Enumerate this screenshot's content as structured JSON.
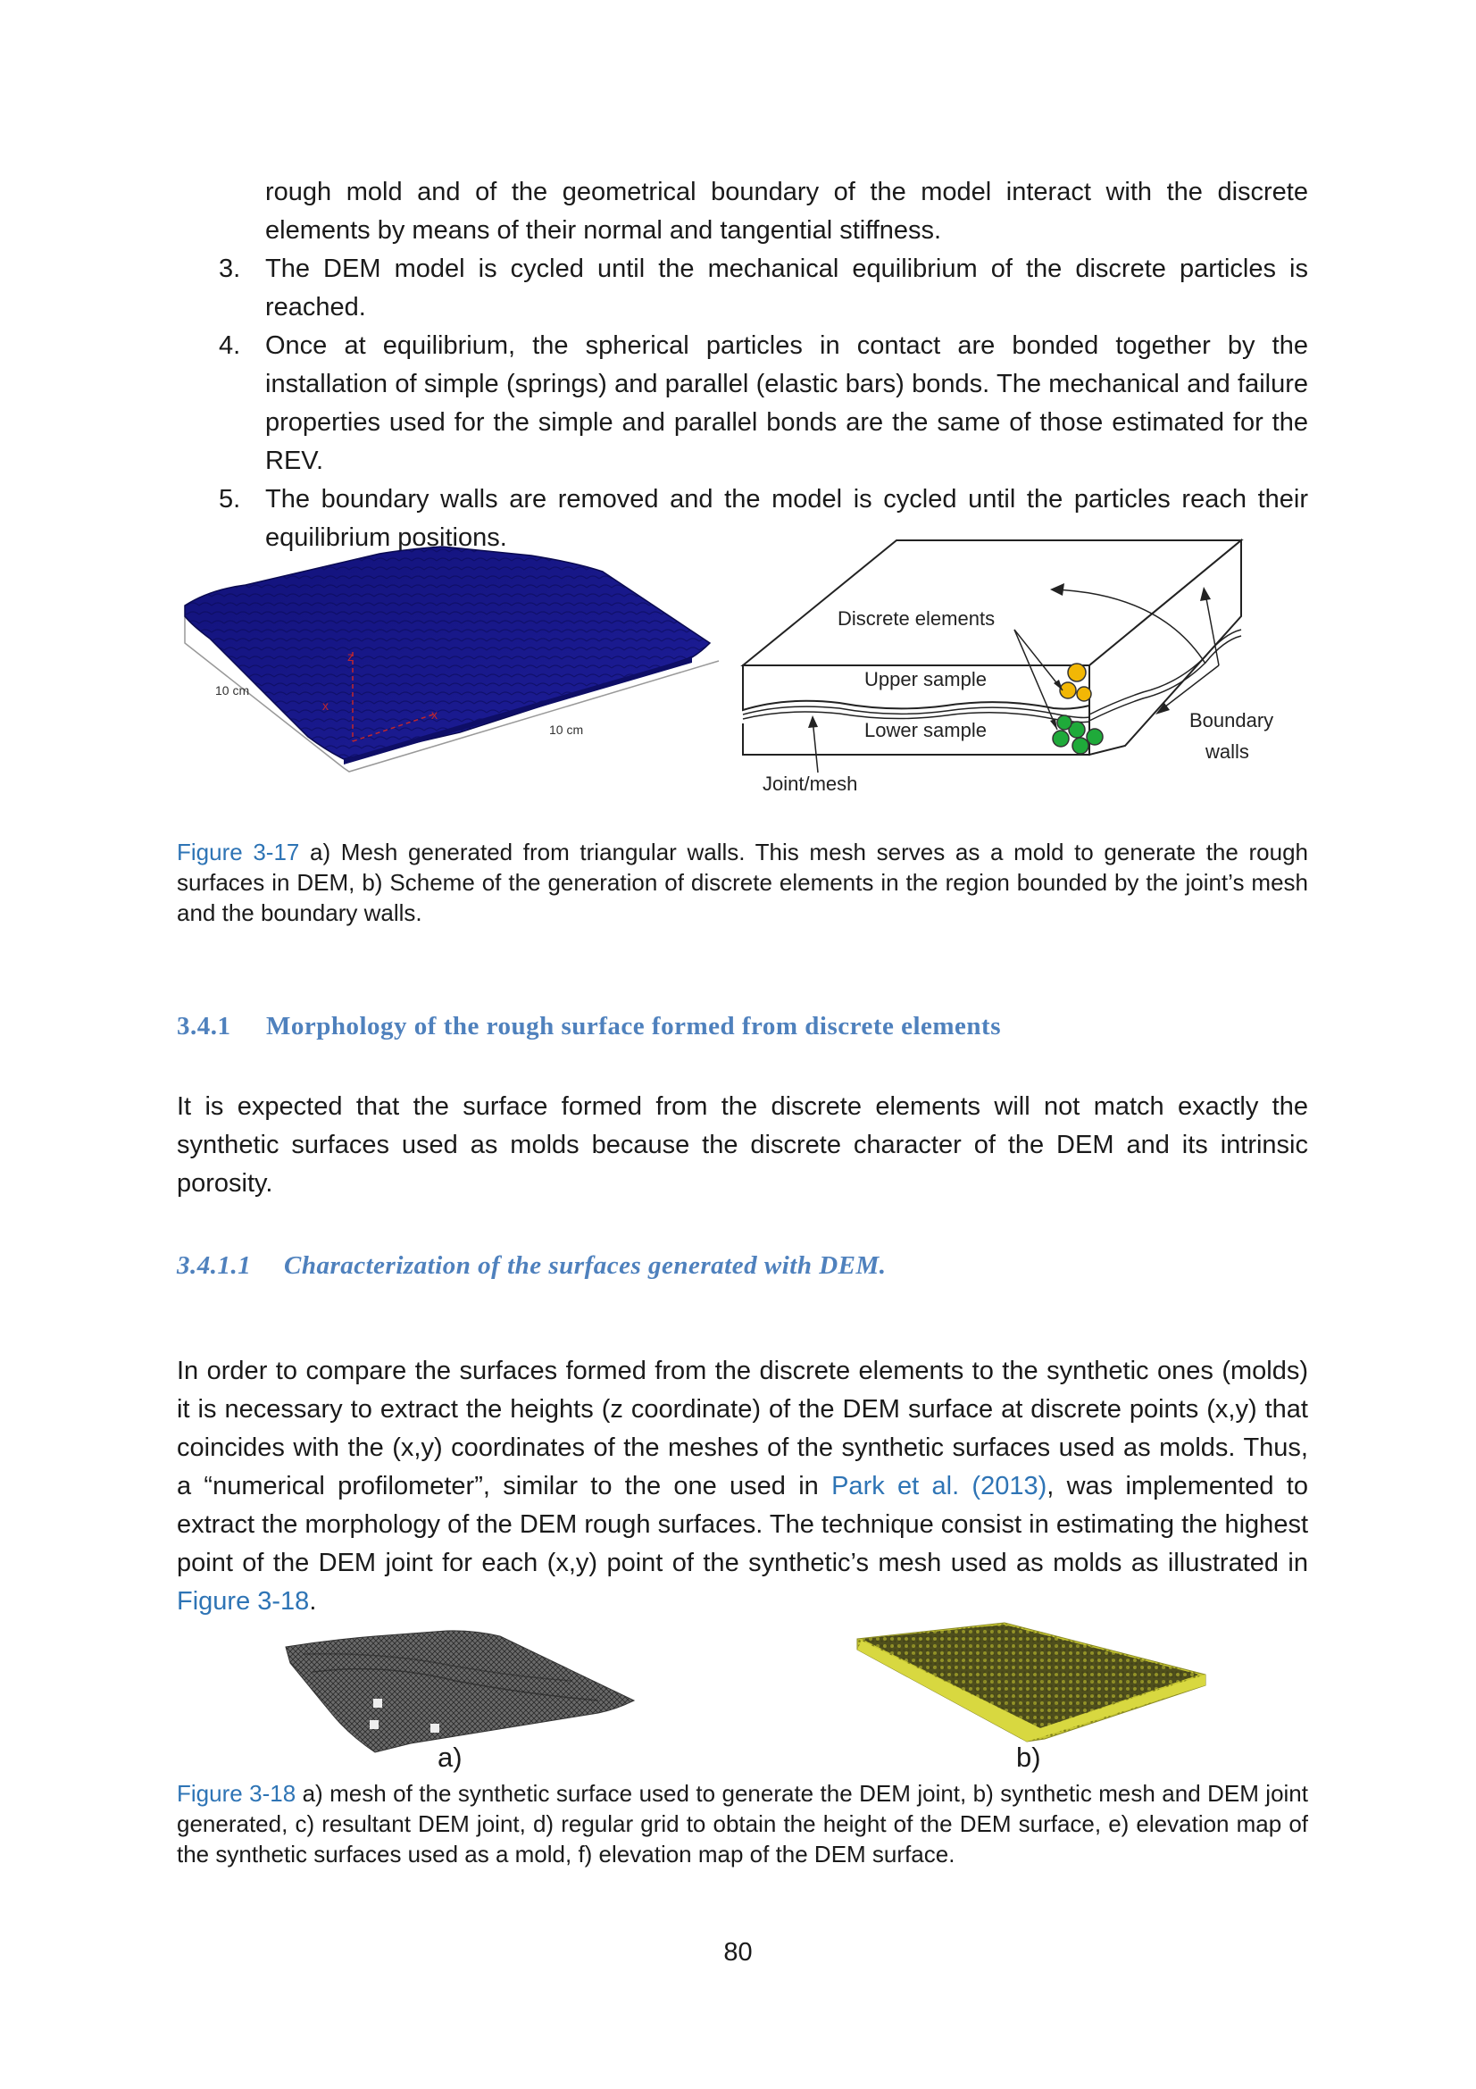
{
  "list_items": [
    {
      "number": "",
      "text": "rough mold and of the geometrical boundary of the model interact with the discrete elements by means of their normal and tangential stiffness."
    },
    {
      "number": "3.",
      "text": "The DEM model is cycled until the mechanical equilibrium of the discrete particles is reached."
    },
    {
      "number": "4.",
      "text": "Once at equilibrium, the spherical particles in contact are bonded together by the installation of simple (springs) and parallel (elastic bars) bonds. The mechanical and failure properties used for the simple and parallel bonds are the same of those estimated for the REV."
    },
    {
      "number": "5.",
      "text": "The boundary walls are removed and the model is cycled until the particles reach their equilibrium positions."
    }
  ],
  "figure_3_17": {
    "left_labels": {
      "dim_left": "10 cm",
      "dim_right": "10 cm"
    },
    "scheme_labels": {
      "discrete_elements": "Discrete elements",
      "upper_sample": "Upper sample",
      "lower_sample": "Lower sample",
      "joint_mesh": "Joint/mesh",
      "boundary_line1": "Boundary",
      "boundary_line2": "walls"
    },
    "caption_ref": "Figure 3-17",
    "caption_text": " a) Mesh generated from triangular walls. This mesh serves as a mold to generate the rough surfaces in DEM, b) Scheme of the generation of discrete elements in the region bounded by the joint’s mesh and the boundary walls."
  },
  "section_3_4_1": {
    "number": "3.4.1",
    "title": "Morphology of the rough surface formed from discrete elements",
    "paragraph": "It is expected that the surface formed from the discrete elements will not match exactly the synthetic surfaces used as molds because the discrete character of the DEM and its intrinsic porosity."
  },
  "section_3_4_1_1": {
    "number": "3.4.1.1",
    "title": "Characterization of the surfaces generated with DEM.",
    "para_part1": "In order to compare the surfaces formed from the discrete elements to the synthetic ones (molds) it is necessary to extract the heights (z coordinate) of the DEM surface at discrete points (x,y) that coincides with the (x,y) coordinates of the meshes of the synthetic surfaces used as molds. Thus, a “numerical profilometer”, similar to the one used in ",
    "para_link1": "Park et al. (2013)",
    "para_part2": ", was implemented to extract the morphology of the DEM rough surfaces. The technique consist in estimating the highest point of the DEM joint for each (x,y) point of the synthetic’s mesh used as molds as illustrated in ",
    "para_link2": "Figure 3-18",
    "para_part3": "."
  },
  "figure_3_18": {
    "label_a": "a)",
    "label_b": "b)",
    "caption_ref": "Figure 3-18",
    "caption_text": " a) mesh of the synthetic surface used to generate the DEM joint, b) synthetic mesh and DEM joint generated, c) resultant DEM joint, d) regular grid to obtain the height of the DEM surface, e) elevation map of the synthetic surfaces used as a mold, f) elevation map of the DEM surface."
  },
  "page_number": "80",
  "colors": {
    "link_blue": "#2e74b5",
    "heading_blue": "#4f81bd",
    "mesh_blue": "#1a1a8c",
    "dem_yellow": "#c8c832",
    "particle_yellow": "#f2b705",
    "particle_green": "#1faa3a"
  }
}
